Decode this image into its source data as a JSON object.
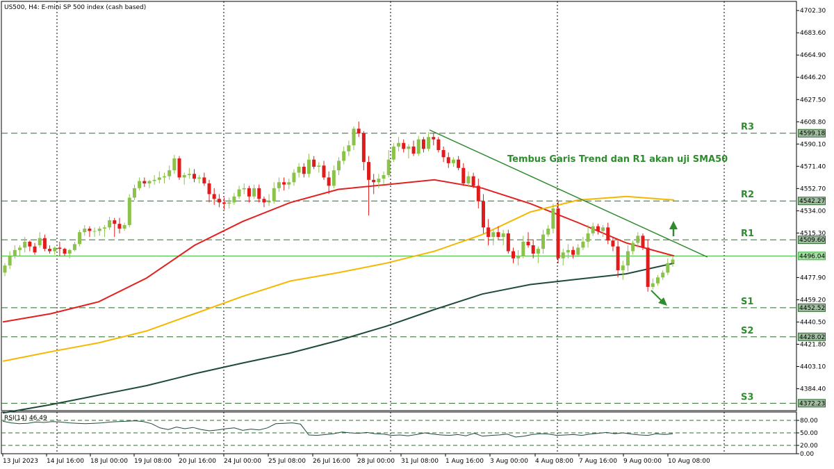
{
  "header": {
    "title": "US500, H4:  E-mini SP 500 index (cash based)"
  },
  "rsi_label": "RSI(14) 46.49",
  "annotation": "Tembus Garis Trend dan R1 akan uji SMA50",
  "colors": {
    "bull": "#8bc34a",
    "bear": "#e01b1b",
    "sma50": "#e32020",
    "sma100": "#f5b700",
    "sma200": "#1e4a3a",
    "trend": "#2e8b2e",
    "level": "#2e6b2e",
    "current": "#36b836",
    "grid": "#000000",
    "rsi": "#1e4a3a"
  },
  "chart_data": [
    {
      "type": "candlestick",
      "title": "US500, H4:  E-mini SP 500 index (cash based)",
      "ylim": [
        4366,
        4710
      ],
      "price_ticks": [
        "4702.30",
        "4683.60",
        "4664.90",
        "4646.20",
        "4627.50",
        "4608.80",
        "4590.10",
        "4571.40",
        "4552.70",
        "4534.00",
        "4515.30",
        "4477.90",
        "4459.20",
        "4440.50",
        "4421.80",
        "4403.10",
        "4384.40"
      ],
      "x_ticks": [
        "13 Jul 2023",
        "14 Jul 16:00",
        "18 Jul 00:00",
        "19 Jul 08:00",
        "20 Jul 16:00",
        "24 Jul 00:00",
        "25 Jul 08:00",
        "26 Jul 16:00",
        "28 Jul 00:00",
        "31 Jul 08:00",
        "1 Aug 16:00",
        "3 Aug 00:00",
        "4 Aug 08:00",
        "7 Aug 16:00",
        "9 Aug 00:00",
        "10 Aug 08:00"
      ],
      "levels": [
        {
          "name": "R3",
          "value": 4599.18
        },
        {
          "name": "R2",
          "value": 4542.27
        },
        {
          "name": "R1",
          "value": 4509.6
        },
        {
          "name": "S1",
          "value": 4452.52
        },
        {
          "name": "S2",
          "value": 4428.02
        },
        {
          "name": "S3",
          "value": 4372.23
        }
      ],
      "current_price": 4496.04,
      "series": [
        {
          "name": "SMA50",
          "values": [
            4440.5,
            4447.5,
            4457.5,
            4477.5,
            4505,
            4525,
            4541,
            4552,
            4556,
            4560,
            4553,
            4540,
            4524,
            4507,
            4496
          ]
        },
        {
          "name": "SMA100",
          "values": [
            4407.5,
            4415.5,
            4423,
            4433,
            4447.5,
            4462,
            4475,
            4482,
            4490,
            4500,
            4514,
            4533,
            4543,
            4546,
            4543
          ]
        },
        {
          "name": "SMA200",
          "values": [
            4364,
            4371,
            4379,
            4387,
            4397,
            4406,
            4414.5,
            4425,
            4437,
            4451,
            4464,
            4472,
            4476.5,
            4481,
            4490
          ]
        }
      ],
      "candles": [
        [
          4482,
          4490,
          4479,
          4488
        ],
        [
          4488,
          4500,
          4485,
          4496
        ],
        [
          4496,
          4505,
          4494,
          4501
        ],
        [
          4501,
          4505,
          4496,
          4503
        ],
        [
          4503,
          4512,
          4499,
          4508
        ],
        [
          4508,
          4509,
          4500,
          4504
        ],
        [
          4504,
          4507,
          4497,
          4499
        ],
        [
          4505,
          4516,
          4503,
          4511
        ],
        [
          4511,
          4514,
          4500,
          4502
        ],
        [
          4502,
          4505,
          4498,
          4500
        ],
        [
          4500,
          4504,
          4497,
          4503
        ],
        [
          4503,
          4508,
          4496,
          4502
        ],
        [
          4502,
          4503,
          4496,
          4498
        ],
        [
          4498,
          4502,
          4494,
          4501
        ],
        [
          4501,
          4508,
          4500,
          4506
        ],
        [
          4506,
          4518,
          4504,
          4516
        ],
        [
          4516,
          4522,
          4513,
          4519
        ],
        [
          4519,
          4521,
          4512,
          4517
        ],
        [
          4517,
          4520,
          4512,
          4517
        ],
        [
          4517,
          4521,
          4513,
          4519
        ],
        [
          4519,
          4522,
          4512,
          4520
        ],
        [
          4520,
          4529,
          4518,
          4526
        ],
        [
          4526,
          4528,
          4512,
          4523
        ],
        [
          4523,
          4528,
          4515,
          4519
        ],
        [
          4519,
          4524,
          4517,
          4522
        ],
        [
          4522,
          4548,
          4520,
          4545
        ],
        [
          4545,
          4556,
          4543,
          4553
        ],
        [
          4553,
          4562,
          4551,
          4559
        ],
        [
          4559,
          4562,
          4554,
          4557
        ],
        [
          4557,
          4560,
          4553,
          4559
        ],
        [
          4559,
          4564,
          4556,
          4560
        ],
        [
          4560,
          4567,
          4557,
          4562
        ],
        [
          4562,
          4566,
          4557,
          4563
        ],
        [
          4563,
          4572,
          4560,
          4568
        ],
        [
          4568,
          4581,
          4565,
          4578
        ],
        [
          4578,
          4580,
          4560,
          4562
        ],
        [
          4562,
          4566,
          4556,
          4564
        ],
        [
          4564,
          4570,
          4561,
          4565
        ],
        [
          4565,
          4569,
          4558,
          4561
        ],
        [
          4561,
          4564,
          4557,
          4562
        ],
        [
          4562,
          4566,
          4555,
          4557
        ],
        [
          4557,
          4560,
          4541,
          4548
        ],
        [
          4548,
          4553,
          4539,
          4544
        ],
        [
          4544,
          4548,
          4537,
          4541
        ],
        [
          4541,
          4545,
          4535,
          4540
        ],
        [
          4540,
          4545,
          4536,
          4541
        ],
        [
          4541,
          4549,
          4539,
          4546
        ],
        [
          4546,
          4555,
          4544,
          4552
        ],
        [
          4552,
          4557,
          4548,
          4553
        ],
        [
          4553,
          4555,
          4541,
          4546
        ],
        [
          4546,
          4556,
          4544,
          4553
        ],
        [
          4553,
          4556,
          4541,
          4544
        ],
        [
          4544,
          4546,
          4537,
          4541
        ],
        [
          4541,
          4548,
          4538,
          4542
        ],
        [
          4542,
          4558,
          4540,
          4553
        ],
        [
          4553,
          4562,
          4550,
          4558
        ],
        [
          4558,
          4562,
          4551,
          4556
        ],
        [
          4556,
          4561,
          4552,
          4558
        ],
        [
          4558,
          4569,
          4555,
          4566
        ],
        [
          4566,
          4574,
          4562,
          4571
        ],
        [
          4571,
          4574,
          4562,
          4565
        ],
        [
          4565,
          4582,
          4562,
          4577
        ],
        [
          4577,
          4580,
          4569,
          4571
        ],
        [
          4571,
          4575,
          4566,
          4572
        ],
        [
          4572,
          4576,
          4560,
          4562
        ],
        [
          4562,
          4567,
          4548,
          4555
        ],
        [
          4555,
          4572,
          4553,
          4568
        ],
        [
          4568,
          4579,
          4564,
          4576
        ],
        [
          4576,
          4588,
          4573,
          4584
        ],
        [
          4584,
          4593,
          4580,
          4589
        ],
        [
          4589,
          4605,
          4585,
          4603
        ],
        [
          4603,
          4609,
          4596,
          4599
        ],
        [
          4599,
          4601,
          4568,
          4575
        ],
        [
          4575,
          4580,
          4530,
          4560
        ],
        [
          4560,
          4565,
          4548,
          4558
        ],
        [
          4558,
          4565,
          4553,
          4561
        ],
        [
          4561,
          4567,
          4556,
          4564
        ],
        [
          4564,
          4585,
          4562,
          4577
        ],
        [
          4577,
          4591,
          4575,
          4588
        ],
        [
          4588,
          4596,
          4584,
          4591
        ],
        [
          4591,
          4594,
          4583,
          4586
        ],
        [
          4586,
          4590,
          4578,
          4588
        ],
        [
          4588,
          4593,
          4580,
          4582
        ],
        [
          4582,
          4597,
          4580,
          4594
        ],
        [
          4594,
          4596,
          4583,
          4586
        ],
        [
          4586,
          4600,
          4584,
          4596
        ],
        [
          4596,
          4599,
          4589,
          4594
        ],
        [
          4594,
          4596,
          4583,
          4585
        ],
        [
          4585,
          4588,
          4575,
          4579
        ],
        [
          4579,
          4583,
          4570,
          4574
        ],
        [
          4574,
          4579,
          4571,
          4577
        ],
        [
          4577,
          4580,
          4568,
          4570
        ],
        [
          4570,
          4574,
          4555,
          4557
        ],
        [
          4557,
          4567,
          4554,
          4563
        ],
        [
          4563,
          4566,
          4553,
          4555
        ],
        [
          4555,
          4561,
          4536,
          4542
        ],
        [
          4542,
          4548,
          4515,
          4520
        ],
        [
          4520,
          4527,
          4505,
          4512
        ],
        [
          4512,
          4518,
          4505,
          4516
        ],
        [
          4516,
          4521,
          4510,
          4512
        ],
        [
          4512,
          4518,
          4505,
          4515
        ],
        [
          4515,
          4518,
          4498,
          4500
        ],
        [
          4500,
          4503,
          4490,
          4494
        ],
        [
          4494,
          4501,
          4488,
          4496
        ],
        [
          4496,
          4513,
          4494,
          4508
        ],
        [
          4508,
          4516,
          4503,
          4505
        ],
        [
          4505,
          4510,
          4494,
          4498
        ],
        [
          4498,
          4504,
          4490,
          4502
        ],
        [
          4502,
          4518,
          4498,
          4514
        ],
        [
          4514,
          4522,
          4512,
          4519
        ],
        [
          4519,
          4540,
          4515,
          4536
        ],
        [
          4536,
          4542,
          4490,
          4494
        ],
        [
          4494,
          4502,
          4488,
          4499
        ],
        [
          4499,
          4506,
          4494,
          4501
        ],
        [
          4501,
          4504,
          4494,
          4497
        ],
        [
          4497,
          4506,
          4495,
          4503
        ],
        [
          4503,
          4512,
          4501,
          4508
        ],
        [
          4508,
          4522,
          4503,
          4515
        ],
        [
          4515,
          4524,
          4513,
          4521
        ],
        [
          4521,
          4523,
          4514,
          4517
        ],
        [
          4517,
          4522,
          4512,
          4520
        ],
        [
          4520,
          4524,
          4506,
          4509
        ],
        [
          4509,
          4512,
          4500,
          4504
        ],
        [
          4504,
          4509,
          4478,
          4484
        ],
        [
          4484,
          4492,
          4476,
          4488
        ],
        [
          4488,
          4505,
          4483,
          4500
        ],
        [
          4500,
          4509,
          4497,
          4507
        ],
        [
          4507,
          4516,
          4503,
          4513
        ],
        [
          4513,
          4515,
          4501,
          4503
        ],
        [
          4503,
          4510,
          4466,
          4470
        ],
        [
          4470,
          4477,
          4468,
          4473
        ],
        [
          4473,
          4480,
          4471,
          4478
        ],
        [
          4478,
          4484,
          4476,
          4482
        ],
        [
          4482,
          4494,
          4480,
          4490
        ],
        [
          4490,
          4496,
          4487,
          4493
        ]
      ]
    },
    {
      "type": "line",
      "title": "RSI(14) 46.49",
      "ylim": [
        0,
        100
      ],
      "ticks": [
        "80.00",
        "50.00",
        "20.00",
        "0.00"
      ],
      "levels": [
        80,
        50,
        20
      ],
      "values": [
        78,
        74,
        72,
        73,
        76,
        75,
        77,
        76,
        74,
        73,
        72,
        73,
        74,
        76,
        77,
        78,
        79,
        77,
        72,
        62,
        58,
        64,
        60,
        63,
        58,
        55,
        57,
        60,
        62,
        56,
        59,
        57,
        62,
        72,
        73,
        74,
        71,
        45,
        44,
        46,
        48,
        52,
        50,
        49,
        51,
        48,
        47,
        44,
        45,
        43,
        46,
        50,
        47,
        45,
        44,
        46,
        43,
        49,
        42,
        44,
        45,
        47,
        40,
        42,
        46,
        48,
        47,
        44,
        45,
        46,
        44,
        47,
        49,
        51,
        48,
        50,
        47,
        45,
        44,
        48,
        46,
        48
      ]
    }
  ]
}
